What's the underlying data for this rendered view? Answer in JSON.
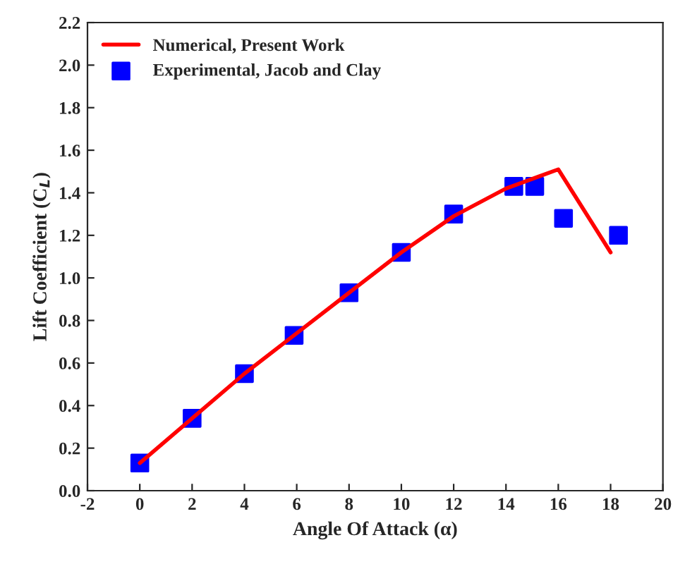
{
  "chart_data": {
    "type": "line",
    "xlabel": "Angle Of Attack (α)",
    "ylabel": "Lift Coefficient (C$_{L}$)",
    "xlim": [
      -2,
      20
    ],
    "xticks": [
      -2,
      0,
      2,
      4,
      6,
      8,
      10,
      12,
      14,
      16,
      18,
      20
    ],
    "ylim": [
      0,
      2.2
    ],
    "yticks": [
      {
        "value": 0,
        "label": "0.0"
      },
      {
        "value": 0.2,
        "label": "0.2"
      },
      {
        "value": 0.4,
        "label": "0.4"
      },
      {
        "value": 0.6,
        "label": "0.6"
      },
      {
        "value": 0.8,
        "label": "0.8"
      },
      {
        "value": 1.0,
        "label": "1.0"
      },
      {
        "value": 1.2,
        "label": "1.2"
      },
      {
        "value": 1.4,
        "label": "1.4"
      },
      {
        "value": 1.6,
        "label": "1.6"
      },
      {
        "value": 1.8,
        "label": "1.8"
      },
      {
        "value": 2.0,
        "label": "2.0"
      },
      {
        "value": 2.2,
        "label": "2.2"
      }
    ],
    "grid": false,
    "legend": "top left",
    "series": [
      {
        "name": "Numerical, Present Work",
        "color": "#ff0000",
        "marker": "none",
        "line_style": "solid",
        "x": [
          0,
          2,
          4,
          6,
          8,
          10,
          12,
          14,
          16,
          18
        ],
        "values": [
          0.13,
          0.34,
          0.55,
          0.74,
          0.93,
          1.12,
          1.29,
          1.42,
          1.51,
          1.12
        ]
      },
      {
        "name": "Experimental, Jacob and Clay",
        "type": "scatter",
        "color": "#0000ff",
        "marker": "square",
        "x": [
          0,
          2,
          4,
          5.9,
          8,
          10,
          12,
          14.3,
          15.1,
          16.2,
          18.3
        ],
        "values": [
          0.13,
          0.34,
          0.55,
          0.73,
          0.93,
          1.12,
          1.3,
          1.43,
          1.43,
          1.28,
          1.2
        ]
      }
    ]
  }
}
